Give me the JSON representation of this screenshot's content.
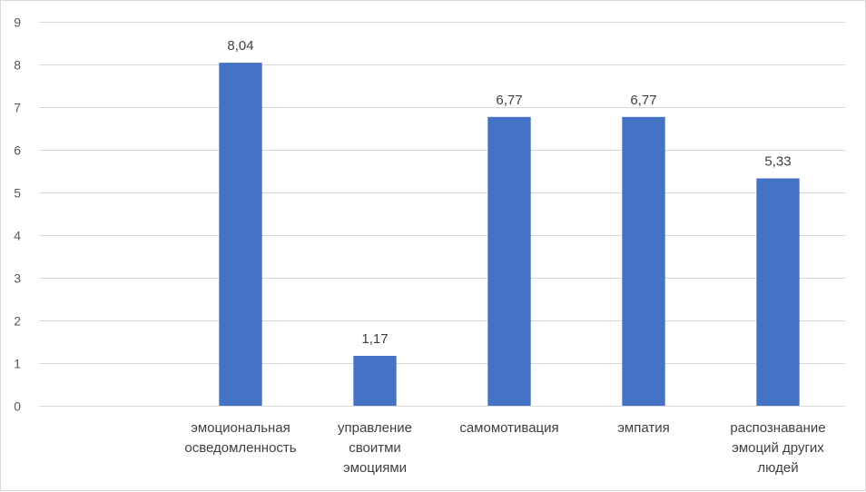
{
  "chart_data": {
    "type": "bar",
    "categories": [
      "",
      "эмоциональная осведомленность",
      "управление своитми эмоциями",
      "самомотивация",
      "эмпатия",
      "распознавание эмоций других людей"
    ],
    "category_lines": [
      [],
      [
        "эмоциональная",
        "осведомленность"
      ],
      [
        "управление",
        "своитми",
        "эмоциями"
      ],
      [
        "самомотивация"
      ],
      [
        "эмпатия"
      ],
      [
        "распознавание",
        "эмоций других",
        "людей"
      ]
    ],
    "values": [
      null,
      8.04,
      1.17,
      6.77,
      6.77,
      5.33
    ],
    "data_labels": [
      "",
      "8,04",
      "1,17",
      "6,77",
      "6,77",
      "5,33"
    ],
    "y_ticks": [
      "0",
      "1",
      "2",
      "3",
      "4",
      "5",
      "6",
      "7",
      "8",
      "9"
    ],
    "ylim": [
      0,
      9
    ],
    "grid": true,
    "legend": "none",
    "bar_color": "#4472c4"
  }
}
